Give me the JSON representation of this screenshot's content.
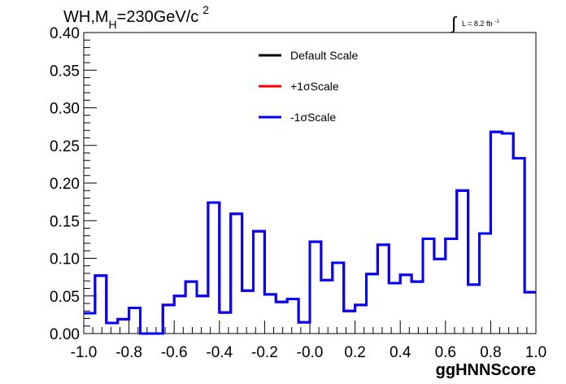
{
  "chart_data": {
    "type": "line",
    "title": "WH,M",
    "title_sub": "H",
    "title_rest": "=230GeV/c",
    "title_sup": "2",
    "lumi_label": "L = 8.2 fb",
    "lumi_sup": "-1",
    "xlabel": "ggHNNScore",
    "ylabel": "",
    "xlim": [
      -1.0,
      1.0
    ],
    "ylim": [
      0.0,
      0.4
    ],
    "x_ticks": [
      "-1.0",
      "-0.8",
      "-0.6",
      "-0.4",
      "-0.2",
      "-0.0",
      "0.2",
      "0.4",
      "0.6",
      "0.8",
      "1.0"
    ],
    "y_ticks": [
      "0.00",
      "0.05",
      "0.10",
      "0.15",
      "0.20",
      "0.25",
      "0.30",
      "0.35",
      "0.40"
    ],
    "grid": false,
    "legend_position": "top-center",
    "bin_edges": [
      -1.0,
      -0.95,
      -0.9,
      -0.85,
      -0.8,
      -0.75,
      -0.7,
      -0.65,
      -0.6,
      -0.55,
      -0.5,
      -0.45,
      -0.4,
      -0.35,
      -0.3,
      -0.25,
      -0.2,
      -0.15,
      -0.1,
      -0.05,
      0.0,
      0.05,
      0.1,
      0.15,
      0.2,
      0.25,
      0.3,
      0.35,
      0.4,
      0.45,
      0.5,
      0.55,
      0.6,
      0.65,
      0.7,
      0.75,
      0.8,
      0.85,
      0.9,
      0.95,
      1.0
    ],
    "series": [
      {
        "name": "Default Scale",
        "color": "#000000",
        "values": [
          0.027,
          0.077,
          0.014,
          0.019,
          0.034,
          0.0,
          0.0,
          0.038,
          0.05,
          0.069,
          0.05,
          0.174,
          0.028,
          0.159,
          0.057,
          0.136,
          0.052,
          0.042,
          0.046,
          0.015,
          0.122,
          0.071,
          0.094,
          0.03,
          0.038,
          0.079,
          0.118,
          0.067,
          0.078,
          0.069,
          0.126,
          0.099,
          0.126,
          0.19,
          0.065,
          0.133,
          0.268,
          0.266,
          0.233,
          0.055
        ]
      },
      {
        "name": "+1σScale",
        "color": "#ff0000",
        "values": [
          0.027,
          0.077,
          0.014,
          0.019,
          0.034,
          0.0,
          0.0,
          0.038,
          0.05,
          0.069,
          0.05,
          0.174,
          0.028,
          0.159,
          0.057,
          0.136,
          0.052,
          0.042,
          0.046,
          0.015,
          0.122,
          0.071,
          0.094,
          0.03,
          0.038,
          0.079,
          0.118,
          0.067,
          0.078,
          0.069,
          0.126,
          0.099,
          0.126,
          0.19,
          0.065,
          0.133,
          0.268,
          0.266,
          0.233,
          0.055
        ]
      },
      {
        "name": "-1σScale",
        "color": "#0000ff",
        "values": [
          0.027,
          0.077,
          0.014,
          0.019,
          0.034,
          0.0,
          0.0,
          0.038,
          0.05,
          0.069,
          0.05,
          0.174,
          0.028,
          0.159,
          0.057,
          0.136,
          0.052,
          0.042,
          0.046,
          0.015,
          0.122,
          0.071,
          0.094,
          0.03,
          0.038,
          0.079,
          0.118,
          0.067,
          0.078,
          0.069,
          0.126,
          0.099,
          0.126,
          0.19,
          0.065,
          0.133,
          0.268,
          0.266,
          0.233,
          0.055
        ]
      }
    ]
  }
}
